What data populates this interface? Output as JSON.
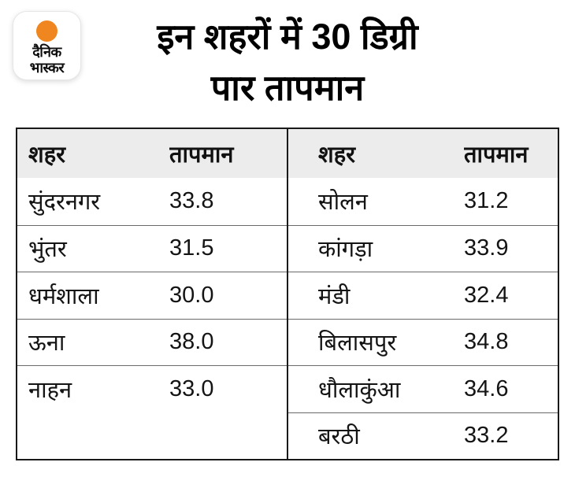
{
  "brand": {
    "line1": "दैनिक",
    "line2": "भास्कर",
    "dot_color": "#f0861f"
  },
  "title": {
    "line1": "इन शहरों में 30 डिग्री",
    "line2": "पार तापमान"
  },
  "colors": {
    "header_bg": "#ececec",
    "table_border": "#191919",
    "row_divider": "#6a6a6a",
    "accent_orange": "#f0861f",
    "text": "#111111"
  },
  "chart_data": {
    "type": "table",
    "title": "इन शहरों में 30 डिग्री पार तापमान",
    "columns": [
      "शहर",
      "तापमान"
    ],
    "tables": [
      {
        "name": "left",
        "rows": [
          {
            "city": "सुंदरनगर",
            "temp": "33.8"
          },
          {
            "city": "भुंतर",
            "temp": "31.5"
          },
          {
            "city": "धर्मशाला",
            "temp": "30.0"
          },
          {
            "city": "ऊना",
            "temp": "38.0"
          },
          {
            "city": "नाहन",
            "temp": "33.0"
          }
        ]
      },
      {
        "name": "right",
        "rows": [
          {
            "city": "सोलन",
            "temp": "31.2"
          },
          {
            "city": "कांगड़ा",
            "temp": "33.9"
          },
          {
            "city": "मंडी",
            "temp": "32.4"
          },
          {
            "city": "बिलासपुर",
            "temp": "34.8"
          },
          {
            "city": "धौलाकुंआ",
            "temp": "34.6"
          },
          {
            "city": "बरठी",
            "temp": "33.2"
          }
        ]
      }
    ]
  }
}
